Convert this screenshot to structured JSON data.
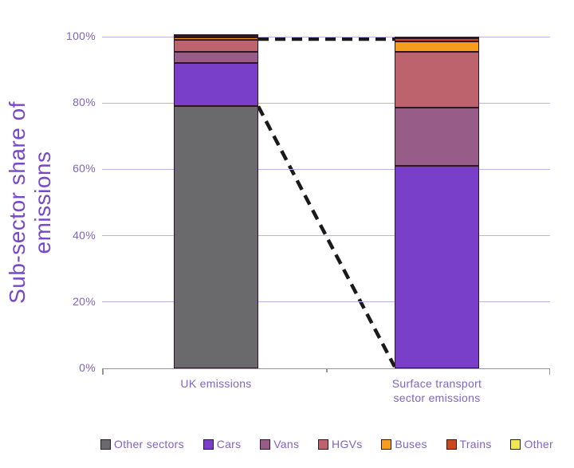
{
  "y_axis": {
    "title_line1": "Sub-sector share of",
    "title_line2": "emissions",
    "tick_labels": [
      "0%",
      "20%",
      "40%",
      "60%",
      "80%",
      "100%"
    ]
  },
  "x_axis": {
    "category_labels": [
      "UK emissions",
      "Surface transport sector emissions"
    ]
  },
  "chart_data": {
    "type": "bar",
    "stacked": true,
    "title": "",
    "ylabel": "Sub-sector share of emissions",
    "xlabel": "",
    "ylim": [
      0,
      100
    ],
    "ytick_labels": [
      "0%",
      "20%",
      "40%",
      "60%",
      "80%",
      "100%"
    ],
    "grid": true,
    "legend_position": "bottom",
    "categories": [
      "UK emissions",
      "Surface transport sector emissions"
    ],
    "series": [
      {
        "name": "Other sectors",
        "color": "#6a696b",
        "values": [
          79,
          0
        ]
      },
      {
        "name": "Cars",
        "color": "#7a3fc9",
        "values": [
          13,
          61
        ]
      },
      {
        "name": "Vans",
        "color": "#975d88",
        "values": [
          3.4,
          17.5
        ]
      },
      {
        "name": "HGVs",
        "color": "#bd636d",
        "values": [
          3.7,
          17
        ]
      },
      {
        "name": "Buses",
        "color": "#f79d1e",
        "values": [
          0.6,
          3
        ]
      },
      {
        "name": "Trains",
        "color": "#c84a1d",
        "values": [
          0.2,
          1
        ]
      },
      {
        "name": "Other",
        "color": "#ede952",
        "values": [
          0.1,
          0.5
        ]
      }
    ],
    "annotations": [
      "Black dashed lines connect the 100% level and the 79% level of the UK emissions bar to the top and bottom of the Surface transport sector emissions bar"
    ]
  },
  "colors": {
    "label_text": "#7e64c8",
    "axis_title": "#7749c7",
    "gridline": "#bfb3e4",
    "axis_line": "#9a93a4",
    "segment_border": "#2e1624",
    "dashed_line": "#1a1a1a",
    "background": "#ffffff"
  }
}
